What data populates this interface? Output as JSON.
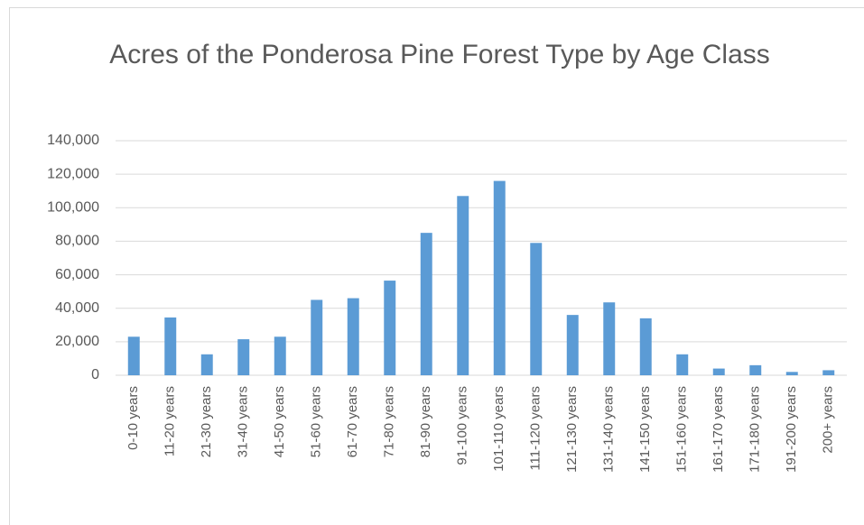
{
  "chart_data": {
    "type": "bar",
    "title": "Acres of the Ponderosa Pine Forest Type by Age Class",
    "categories": [
      "0-10 years",
      "11-20 years",
      "21-30 years",
      "31-40 years",
      "41-50 years",
      "51-60 years",
      "61-70 years",
      "71-80 years",
      "81-90 years",
      "91-100 years",
      "101-110 years",
      "111-120 years",
      "121-130 years",
      "131-140 years",
      "141-150 years",
      "151-160 years",
      "161-170 years",
      "171-180 years",
      "191-200 years",
      "200+ years"
    ],
    "values": [
      23000,
      34500,
      12500,
      21500,
      23000,
      45000,
      46000,
      56500,
      85000,
      107000,
      116000,
      79000,
      36000,
      43500,
      34000,
      12500,
      4000,
      6000,
      2000,
      3000
    ],
    "color": "#5b9bd5",
    "ylim": [
      0,
      140000
    ],
    "yticks": [
      0,
      {
        "value": 20000,
        "label": "20,000"
      },
      {
        "value": 40000,
        "label": "40,000"
      },
      {
        "value": 60000,
        "label": "60,000"
      },
      {
        "value": 80000,
        "label": "80,000"
      },
      {
        "value": 100000,
        "label": "100,000"
      },
      {
        "value": 120000,
        "label": "120,000"
      },
      {
        "value": 140000,
        "label": "140,000"
      }
    ],
    "grid": true
  }
}
